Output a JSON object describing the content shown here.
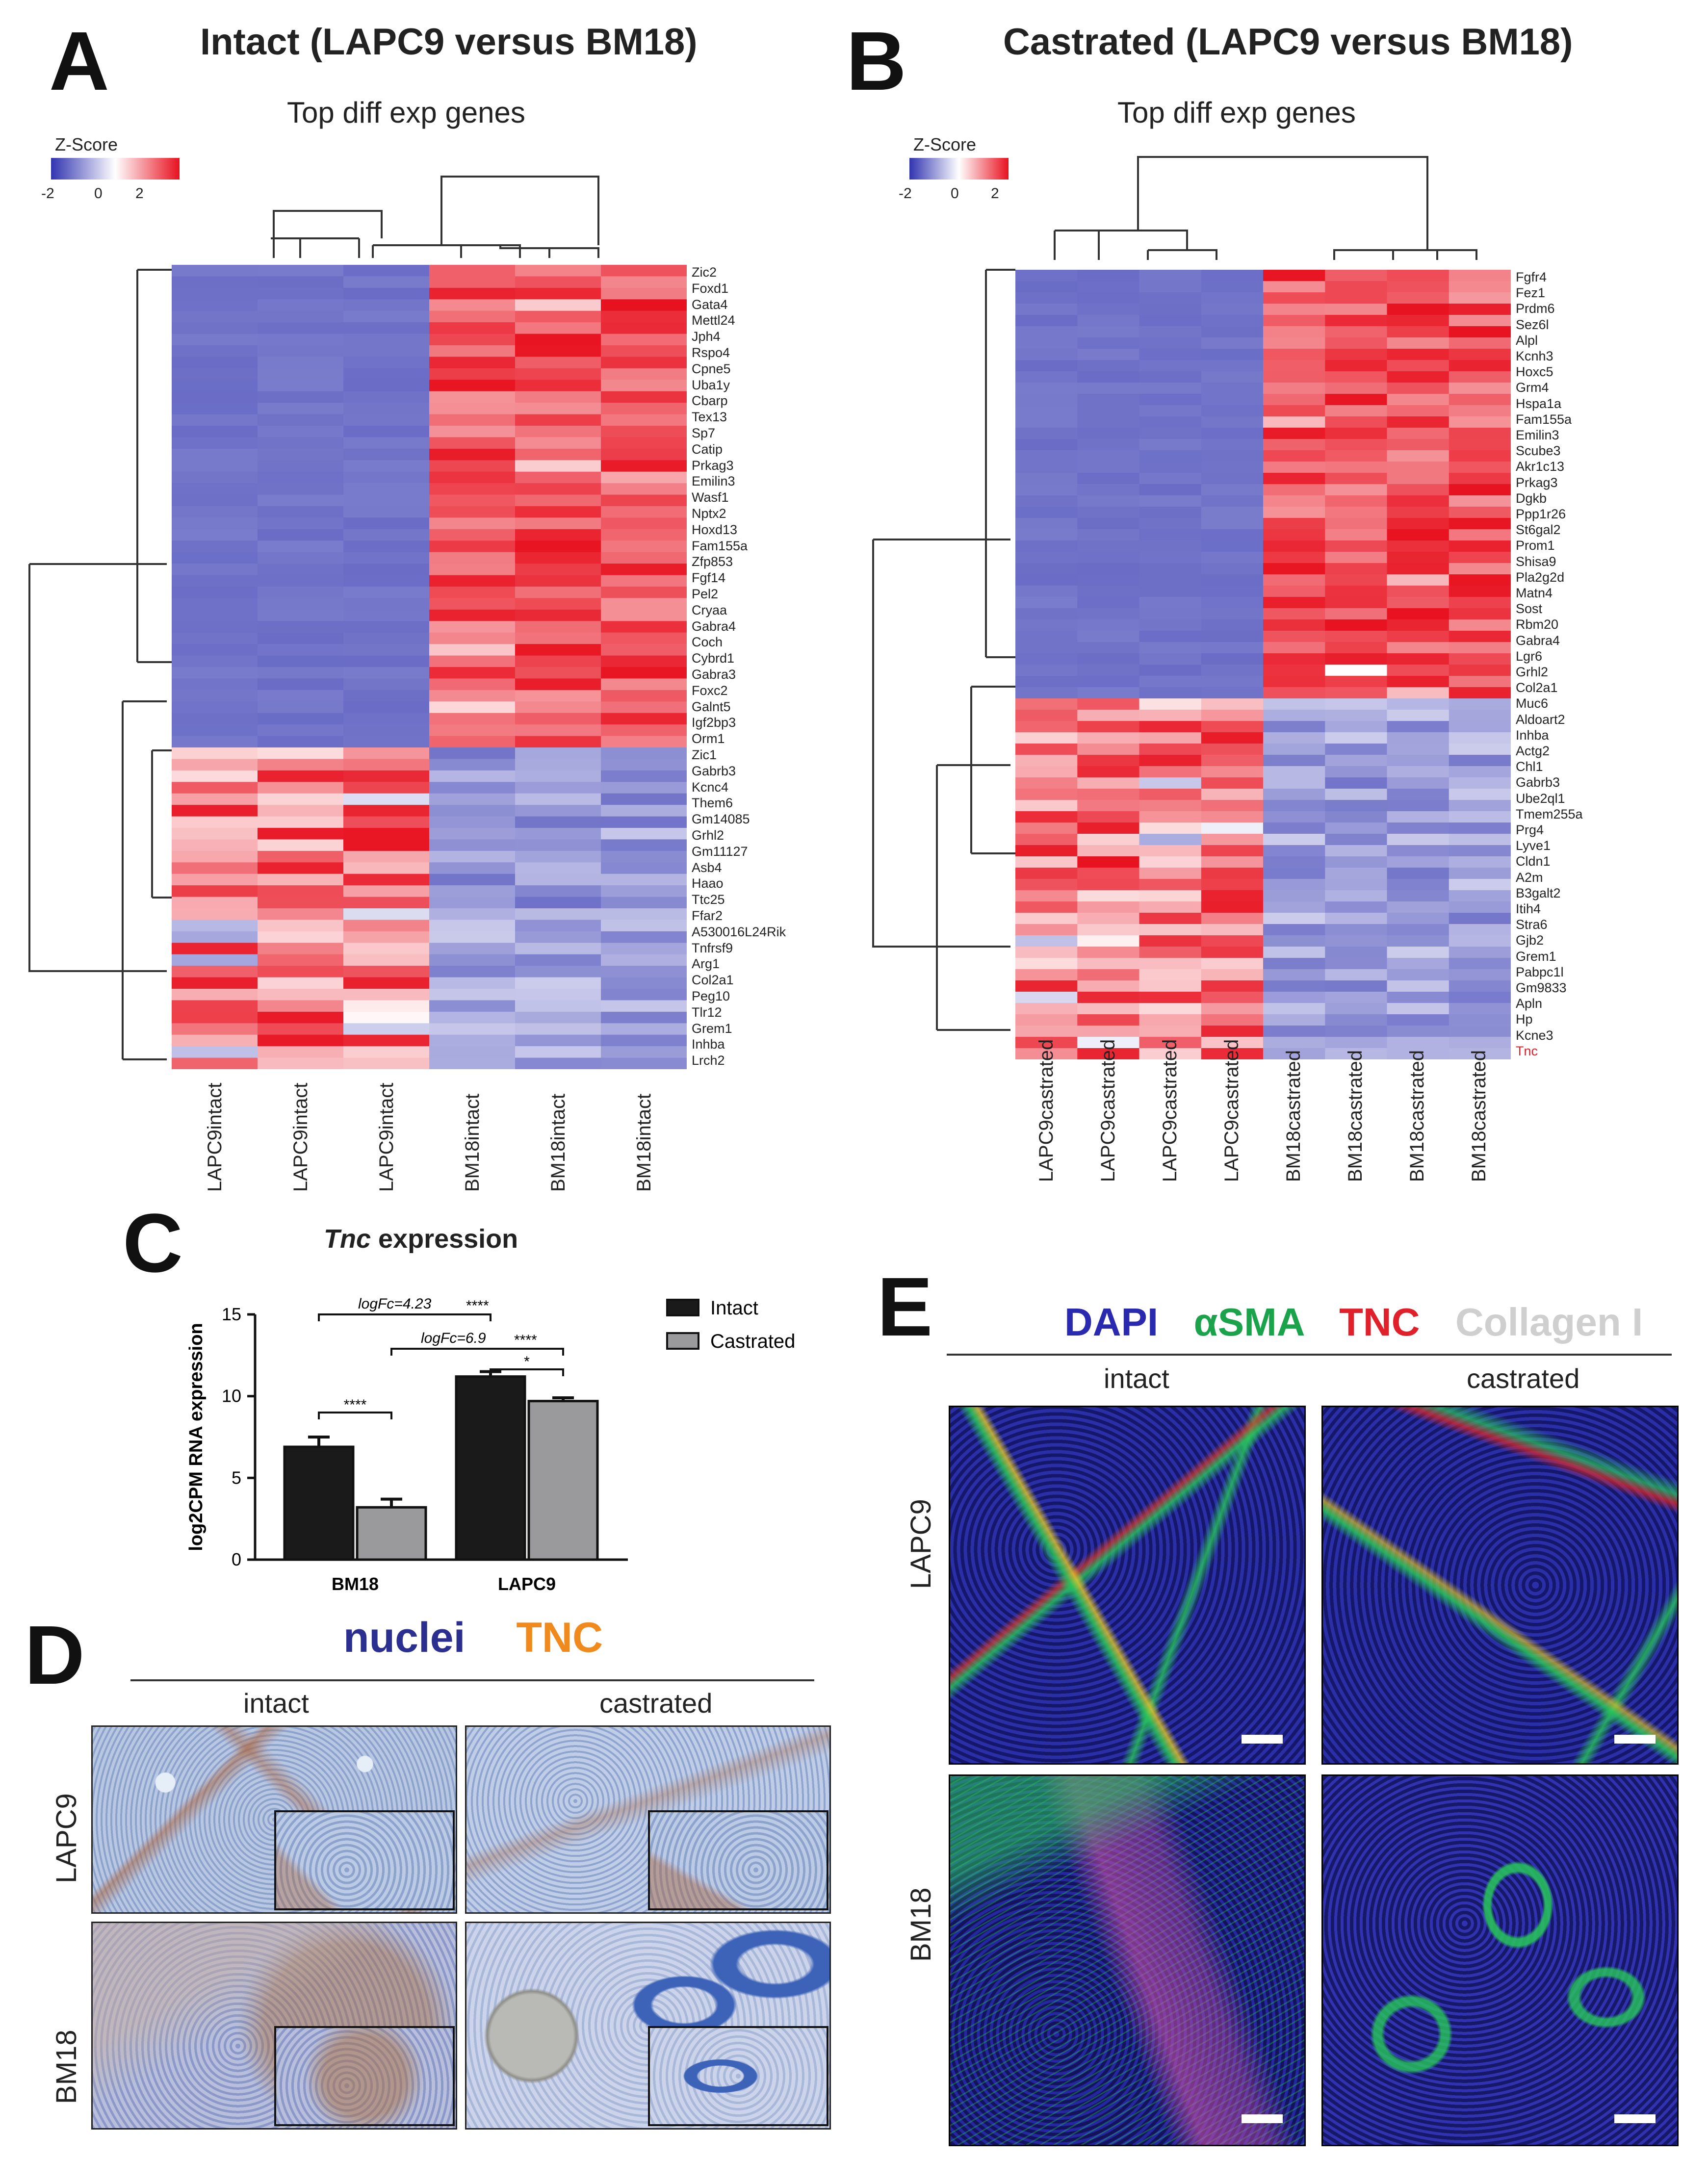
{
  "panelA": {
    "letter": "A",
    "title": "Intact (LAPC9 versus BM18)",
    "subtitle": "Top diff exp genes",
    "zscore": {
      "title": "Z-Score",
      "ticks": [
        "-2",
        "0",
        "2"
      ]
    },
    "genes": [
      "Zic2",
      "Foxd1",
      "Gata4",
      "Mettl24",
      "Jph4",
      "Rspo4",
      "Cpne5",
      "Uba1y",
      "Cbarp",
      "Tex13",
      "Sp7",
      "Catip",
      "Prkag3",
      "Emilin3",
      "Wasf1",
      "Nptx2",
      "Hoxd13",
      "Fam155a",
      "Zfp853",
      "Fgf14",
      "Pel2",
      "Cryaa",
      "Gabra4",
      "Coch",
      "Cybrd1",
      "Gabra3",
      "Foxc2",
      "Galnt5",
      "Igf2bp3",
      "Orm1",
      "Zic1",
      "Gabrb3",
      "Kcnc4",
      "Them6",
      "Gm14085",
      "Grhl2",
      "Gm11127",
      "Asb4",
      "Haao",
      "Ttc25",
      "Ffar2",
      "A530016L24Rik",
      "Tnfrsf9",
      "Arg1",
      "Col2a1",
      "Peg10",
      "Tlr12",
      "Grem1",
      "Inhba",
      "Lrch2"
    ],
    "columns": [
      "LAPC9intact",
      "LAPC9intact",
      "LAPC9intact",
      "BM18intact",
      "BM18intact",
      "BM18intact"
    ]
  },
  "panelB": {
    "letter": "B",
    "title": "Castrated (LAPC9 versus BM18)",
    "subtitle": "Top diff exp genes",
    "zscore": {
      "title": "Z-Score",
      "ticks": [
        "-2",
        "0",
        "2"
      ]
    },
    "genes": [
      "Fgfr4",
      "Fez1",
      "Prdm6",
      "Sez6l",
      "Alpl",
      "Kcnh3",
      "Hoxc5",
      "Grm4",
      "Hspa1a",
      "Fam155a",
      "Emilin3",
      "Scube3",
      "Akr1c13",
      "Prkag3",
      "Dgkb",
      "Ppp1r26",
      "St6gal2",
      "Prom1",
      "Shisa9",
      "Pla2g2d",
      "Matn4",
      "Sost",
      "Rbm20",
      "Gabra4",
      "Lgr6",
      "Grhl2",
      "Col2a1",
      "Muc6",
      "Aldoart2",
      "Inhba",
      "Actg2",
      "Chl1",
      "Gabrb3",
      "Ube2ql1",
      "Tmem255a",
      "Prg4",
      "Lyve1",
      "Cldn1",
      "A2m",
      "B3galt2",
      "Itih4",
      "Stra6",
      "Gjb2",
      "Grem1",
      "Pabpc1l",
      "Gm9833",
      "Apln",
      "Hp",
      "Kcne3",
      "Tnc"
    ],
    "highlight_gene": "Tnc",
    "highlight_color": "#e0202a",
    "columns": [
      "LAPC9castrated",
      "LAPC9castrated",
      "LAPC9castrated",
      "LAPC9castrated",
      "BM18castrated",
      "BM18castrated",
      "BM18castrated",
      "BM18castrated"
    ]
  },
  "panelC": {
    "letter": "C",
    "title_italic": "Tnc",
    "title_rest": " expression",
    "annotations": [
      {
        "text": "logFc=4.23",
        "stars": "****"
      },
      {
        "text": "logFc=6.9",
        "stars": "****"
      }
    ],
    "sig_labels": [
      "****",
      "*"
    ],
    "chart_data": {
      "type": "bar",
      "title": "Tnc expression",
      "categories": [
        "BM18",
        "LAPC9"
      ],
      "series": [
        {
          "name": "Intact",
          "values": [
            6.9,
            11.2
          ],
          "errors": [
            0.6,
            0.3
          ],
          "color": "#1a1a1a"
        },
        {
          "name": "Castrated",
          "values": [
            3.2,
            9.7
          ],
          "errors": [
            0.5,
            0.2
          ],
          "color": "#9a9a9c"
        }
      ],
      "ylabel": "log2CPM RNA expression",
      "xlabel": "",
      "ylim": [
        0,
        15
      ],
      "yticks": [
        "0",
        "5",
        "10",
        "15"
      ],
      "legend": "right"
    }
  },
  "panelD": {
    "letter": "D",
    "header_left": "nuclei",
    "header_right": "TNC",
    "header_left_color": "#2b2f8f",
    "header_right_color": "#f08a1c",
    "col_intact": "intact",
    "col_castrated": "castrated",
    "row_top": "LAPC9",
    "row_bottom": "BM18"
  },
  "panelE": {
    "letter": "E",
    "legend": [
      {
        "label": "DAPI",
        "color": "#2a2ab0"
      },
      {
        "label": "αSMA",
        "color": "#1aa34a"
      },
      {
        "label": "TNC",
        "color": "#e0202a"
      },
      {
        "label": "Collagen I",
        "color": "#cfcfcf"
      }
    ],
    "col_intact": "intact",
    "col_castrated": "castrated",
    "row_top": "LAPC9",
    "row_bottom": "BM18"
  }
}
